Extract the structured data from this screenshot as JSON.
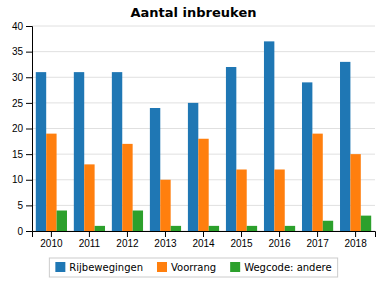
{
  "chart_data": {
    "type": "bar",
    "title": "Aantal inbreuken",
    "categories": [
      "2010",
      "2011",
      "2012",
      "2013",
      "2014",
      "2015",
      "2016",
      "2017",
      "2018"
    ],
    "series": [
      {
        "name": "Rijbewegingen",
        "values": [
          31,
          31,
          31,
          24,
          25,
          32,
          37,
          29,
          33
        ]
      },
      {
        "name": "Voorrang",
        "values": [
          19,
          13,
          17,
          10,
          18,
          12,
          12,
          19,
          15
        ]
      },
      {
        "name": "Wegcode: andere",
        "values": [
          4,
          1,
          4,
          1,
          1,
          1,
          1,
          2,
          3
        ]
      }
    ],
    "ylim": [
      0,
      40
    ],
    "yticks": [
      0,
      5,
      10,
      15,
      20,
      25,
      30,
      35,
      40
    ],
    "grid": true,
    "legend": "bottom"
  }
}
